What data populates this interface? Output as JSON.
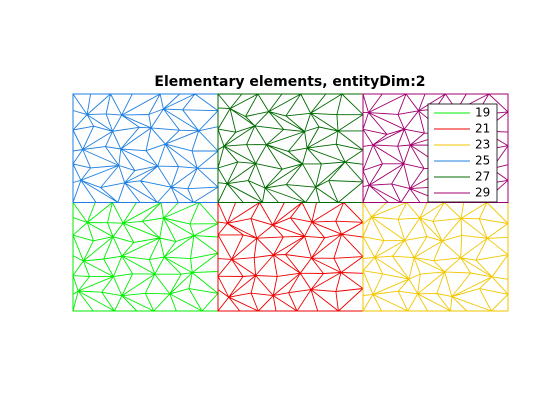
{
  "chart_data": {
    "type": "mesh",
    "title": "Elementary elements, entityDim:2",
    "series": [
      {
        "name": "19",
        "color": "#00ee00"
      },
      {
        "name": "21",
        "color": "#ee0000"
      },
      {
        "name": "23",
        "color": "#f2c600"
      },
      {
        "name": "25",
        "color": "#1f7fe0"
      },
      {
        "name": "27",
        "color": "#006a00"
      },
      {
        "name": "29",
        "color": "#a0006e"
      }
    ]
  }
}
